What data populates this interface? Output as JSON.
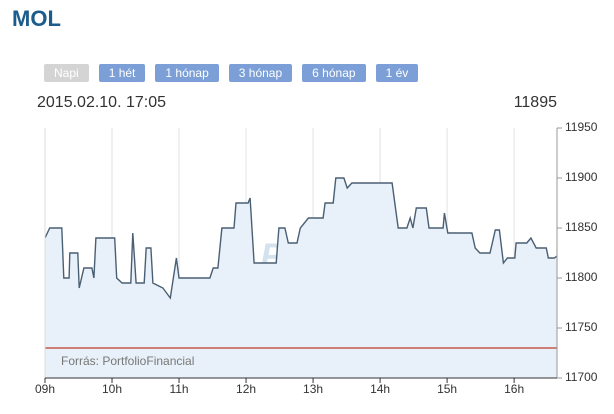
{
  "header": {
    "title": "MOL"
  },
  "buttons": [
    "Napi",
    "1 hét",
    "1 hónap",
    "3 hónap",
    "6 hónap",
    "1 év"
  ],
  "selected_button": 0,
  "info": {
    "timestamp": "2015.02.10. 17:05",
    "last": 11895
  },
  "chart_data": {
    "type": "line",
    "x": [
      9.0,
      9.07,
      9.25,
      9.28,
      9.36,
      9.37,
      9.49,
      9.51,
      9.58,
      9.7,
      9.73,
      9.76,
      10.04,
      10.07,
      10.15,
      10.28,
      10.31,
      10.36,
      10.48,
      10.51,
      10.58,
      10.61,
      10.76,
      10.87,
      10.96,
      11.0,
      11.46,
      11.51,
      11.58,
      11.64,
      11.82,
      11.85,
      12.03,
      12.06,
      12.12,
      12.45,
      12.49,
      12.58,
      12.63,
      12.76,
      12.81,
      12.93,
      13.15,
      13.18,
      13.3,
      13.34,
      13.46,
      13.51,
      13.58,
      14.18,
      14.27,
      14.4,
      14.45,
      14.49,
      14.54,
      14.69,
      14.73,
      14.94,
      14.96,
      15.01,
      15.37,
      15.42,
      15.49,
      15.64,
      15.72,
      15.78,
      15.84,
      15.9,
      16.01,
      16.03,
      16.19,
      16.25,
      16.33,
      16.48,
      16.51,
      16.6,
      16.64
    ],
    "series": [
      {
        "color": "#4a5f73",
        "fill": "#e8f1f9",
        "values": [
          11840,
          11850,
          11850,
          11800,
          11800,
          11825,
          11825,
          11790,
          11810,
          11810,
          11800,
          11840,
          11840,
          11800,
          11795,
          11795,
          11845,
          11795,
          11795,
          11830,
          11830,
          11795,
          11790,
          11780,
          11820,
          11800,
          11800,
          11810,
          11810,
          11850,
          11850,
          11875,
          11875,
          11880,
          11815,
          11815,
          11850,
          11850,
          11835,
          11835,
          11850,
          11860,
          11860,
          11875,
          11875,
          11900,
          11900,
          11890,
          11895,
          11895,
          11850,
          11850,
          11860,
          11850,
          11870,
          11870,
          11850,
          11850,
          11865,
          11845,
          11845,
          11830,
          11825,
          11825,
          11848,
          11848,
          11815,
          11820,
          11820,
          11835,
          11835,
          11840,
          11830,
          11830,
          11820,
          11820,
          11822
        ]
      }
    ],
    "xlim": [
      9,
      16.64
    ],
    "xticks": [
      {
        "value": 9,
        "label": "09h"
      },
      {
        "value": 10,
        "label": "10h"
      },
      {
        "value": 11,
        "label": "11h"
      },
      {
        "value": 12,
        "label": "12h"
      },
      {
        "value": 13,
        "label": "13h"
      },
      {
        "value": 14,
        "label": "14h"
      },
      {
        "value": 15,
        "label": "15h"
      },
      {
        "value": 16,
        "label": "16h"
      }
    ],
    "ylim": [
      11700,
      11950
    ],
    "yticks": [
      11700,
      11750,
      11800,
      11850,
      11900,
      11950
    ],
    "y_axis_side": "right",
    "grid": true,
    "reference_line": {
      "value": 11730,
      "color": "#c0392b"
    },
    "watermark": "ProfitLine",
    "source": "Forrás: PortfolioFinancial"
  }
}
